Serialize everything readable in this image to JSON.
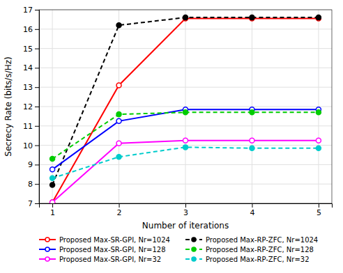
{
  "chart_data": {
    "type": "line",
    "x_label": "Number of iterations",
    "y_label": "Secrecy Rate (bits/s/Hz)",
    "x": [
      1,
      2,
      3,
      4,
      5
    ],
    "series": [
      {
        "name": "Proposed Max-SR-GPI, Nr=1024",
        "color": "#ff0000",
        "line_style": "solid",
        "marker": "open-circle",
        "values": [
          7.05,
          13.1,
          16.55,
          16.55,
          16.55
        ]
      },
      {
        "name": "Proposed Max-RP-ZFC, Nr=1024",
        "color": "#000000",
        "line_style": "dashed",
        "marker": "circle",
        "values": [
          7.95,
          16.2,
          16.6,
          16.6,
          16.6
        ]
      },
      {
        "name": "Proposed Max-SR-GPI, Nr=128",
        "color": "#0000ff",
        "line_style": "solid",
        "marker": "open-circle",
        "values": [
          8.75,
          11.25,
          11.85,
          11.85,
          11.85
        ]
      },
      {
        "name": "Proposed Max-RP-ZFC, Nr=128",
        "color": "#00cc00",
        "line_style": "dashed",
        "marker": "circle",
        "values": [
          9.3,
          11.6,
          11.7,
          11.7,
          11.7
        ]
      },
      {
        "name": "Proposed Max-SR-GPI, Nr=32",
        "color": "#ff00ff",
        "line_style": "solid",
        "marker": "open-circle",
        "values": [
          7.05,
          10.1,
          10.25,
          10.25,
          10.25
        ]
      },
      {
        "name": "Proposed Max-RP-ZFC, Nr=32",
        "color": "#00cccc",
        "line_style": "dashed",
        "marker": "circle",
        "values": [
          8.3,
          9.4,
          9.9,
          9.85,
          9.85
        ]
      }
    ],
    "xlim": [
      0.8,
      5.2
    ],
    "ylim": [
      7,
      17
    ],
    "xticks": [
      1,
      2,
      3,
      4,
      5
    ],
    "yticks": [
      7,
      8,
      9,
      10,
      11,
      12,
      13,
      14,
      15,
      16,
      17
    ],
    "grid": true,
    "legend": "bottom"
  }
}
